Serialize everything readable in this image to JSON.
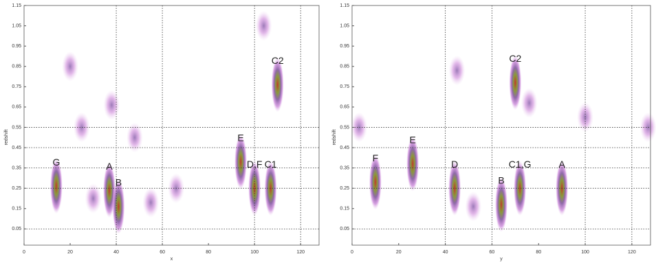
{
  "chart_data": [
    {
      "type": "contour",
      "x_label": "x",
      "y_label": "redshift",
      "xlim": [
        0,
        128
      ],
      "ylim": [
        -0.03,
        1.15
      ],
      "xticks": [
        0,
        20,
        40,
        60,
        80,
        100,
        120
      ],
      "yticks": [
        0.05,
        0.15,
        0.25,
        0.35,
        0.45,
        0.55,
        0.65,
        0.75,
        0.85,
        0.95,
        1.05,
        1.15
      ],
      "grid_x": [
        40,
        60,
        100,
        120
      ],
      "grid_y": [
        0.05,
        0.25,
        0.35,
        0.45,
        0.55
      ],
      "x": [
        14,
        37,
        41,
        94,
        100,
        107,
        110,
        25,
        38,
        20,
        48,
        30,
        55,
        104,
        66
      ],
      "values": [
        0.26,
        0.24,
        0.16,
        0.38,
        0.25,
        0.25,
        0.76,
        0.55,
        0.66,
        0.85,
        0.5,
        0.2,
        0.18,
        1.05,
        0.25
      ],
      "labels": [
        "G",
        "A",
        "B",
        "E",
        "D,F",
        "C1",
        "C2",
        null,
        null,
        null,
        null,
        null,
        null,
        null,
        null
      ]
    },
    {
      "type": "contour",
      "x_label": "y",
      "y_label": "redshift",
      "xlim": [
        0,
        128
      ],
      "ylim": [
        -0.03,
        1.15
      ],
      "xticks": [
        0,
        20,
        40,
        60,
        80,
        100,
        120
      ],
      "yticks": [
        0.05,
        0.15,
        0.25,
        0.35,
        0.45,
        0.55,
        0.65,
        0.75,
        0.85,
        0.95,
        1.05,
        1.15
      ],
      "grid_x": [
        40,
        60,
        100,
        120
      ],
      "grid_y": [
        0.05,
        0.25,
        0.35,
        0.45,
        0.55
      ],
      "x": [
        10,
        26,
        44,
        64,
        72,
        90,
        70,
        3,
        45,
        127,
        76,
        52,
        100
      ],
      "values": [
        0.28,
        0.37,
        0.25,
        0.17,
        0.25,
        0.25,
        0.77,
        0.55,
        0.83,
        0.55,
        0.67,
        0.16,
        0.6
      ],
      "labels": [
        "F",
        "E",
        "D",
        "B",
        "C1,G",
        "A",
        "C2",
        null,
        null,
        null,
        null,
        null,
        null
      ]
    }
  ]
}
